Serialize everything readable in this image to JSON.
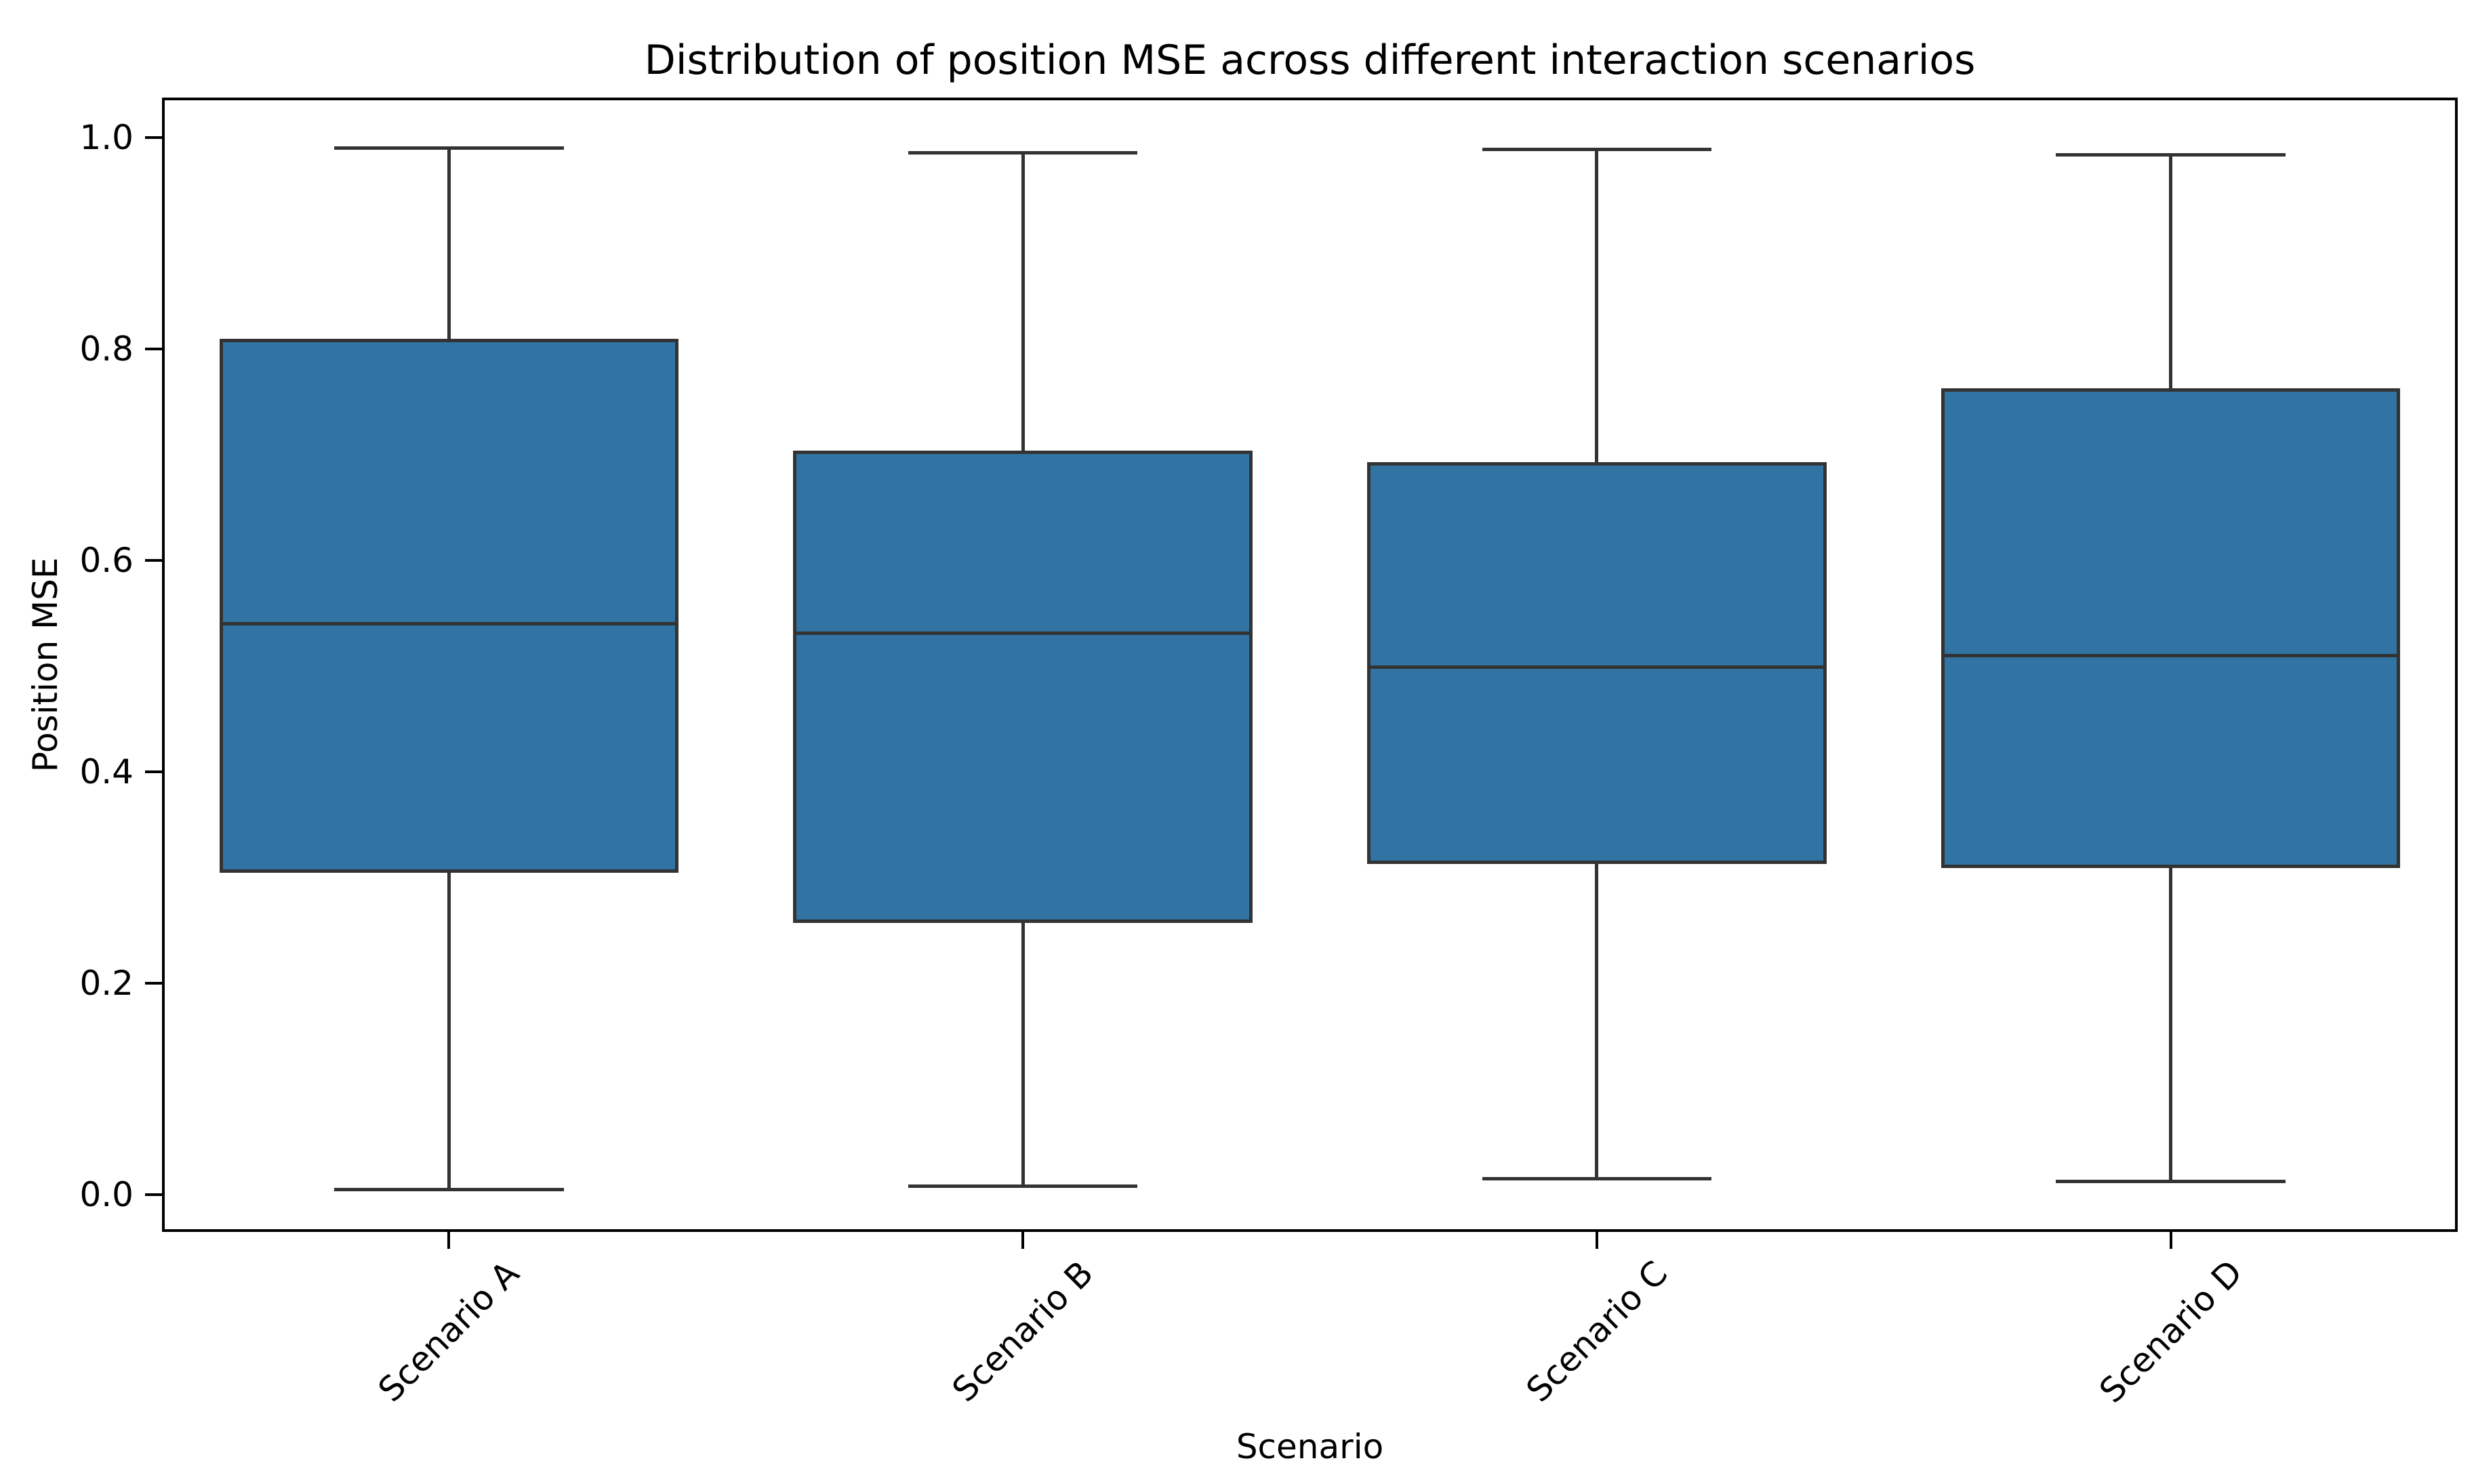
{
  "chart_data": {
    "type": "boxplot",
    "title": "Distribution of position MSE across different interaction scenarios",
    "xlabel": "Scenario",
    "ylabel": "Position MSE",
    "categories": [
      "Scenario A",
      "Scenario B",
      "Scenario C",
      "Scenario D"
    ],
    "series": [
      {
        "label": "Scenario A",
        "whisker_low": 0.005,
        "q1": 0.305,
        "median": 0.54,
        "q3": 0.81,
        "whisker_high": 0.99
      },
      {
        "label": "Scenario B",
        "whisker_low": 0.008,
        "q1": 0.257,
        "median": 0.531,
        "q3": 0.704,
        "whisker_high": 0.986
      },
      {
        "label": "Scenario C",
        "whisker_low": 0.015,
        "q1": 0.313,
        "median": 0.499,
        "q3": 0.693,
        "whisker_high": 0.989
      },
      {
        "label": "Scenario D",
        "whisker_low": 0.013,
        "q1": 0.309,
        "median": 0.51,
        "q3": 0.763,
        "whisker_high": 0.984
      }
    ],
    "y_ticks": [
      0.0,
      0.2,
      0.4,
      0.6,
      0.8,
      1.0
    ],
    "y_tick_labels": [
      "0.0",
      "0.2",
      "0.4",
      "0.6",
      "0.8",
      "1.0"
    ],
    "ylim": [
      -0.035,
      1.038
    ],
    "xlim": [
      0.5,
      4.5
    ],
    "box_width_fraction": 0.8,
    "cap_width_fraction": 0.4,
    "grid": false,
    "legend": false,
    "outliers": [],
    "styles": {
      "box_fill": "#3174a4",
      "box_edge": "#333333",
      "whisker_color": "#333333",
      "median_color": "#333333",
      "axis_color": "#000000",
      "background": "#ffffff"
    }
  }
}
